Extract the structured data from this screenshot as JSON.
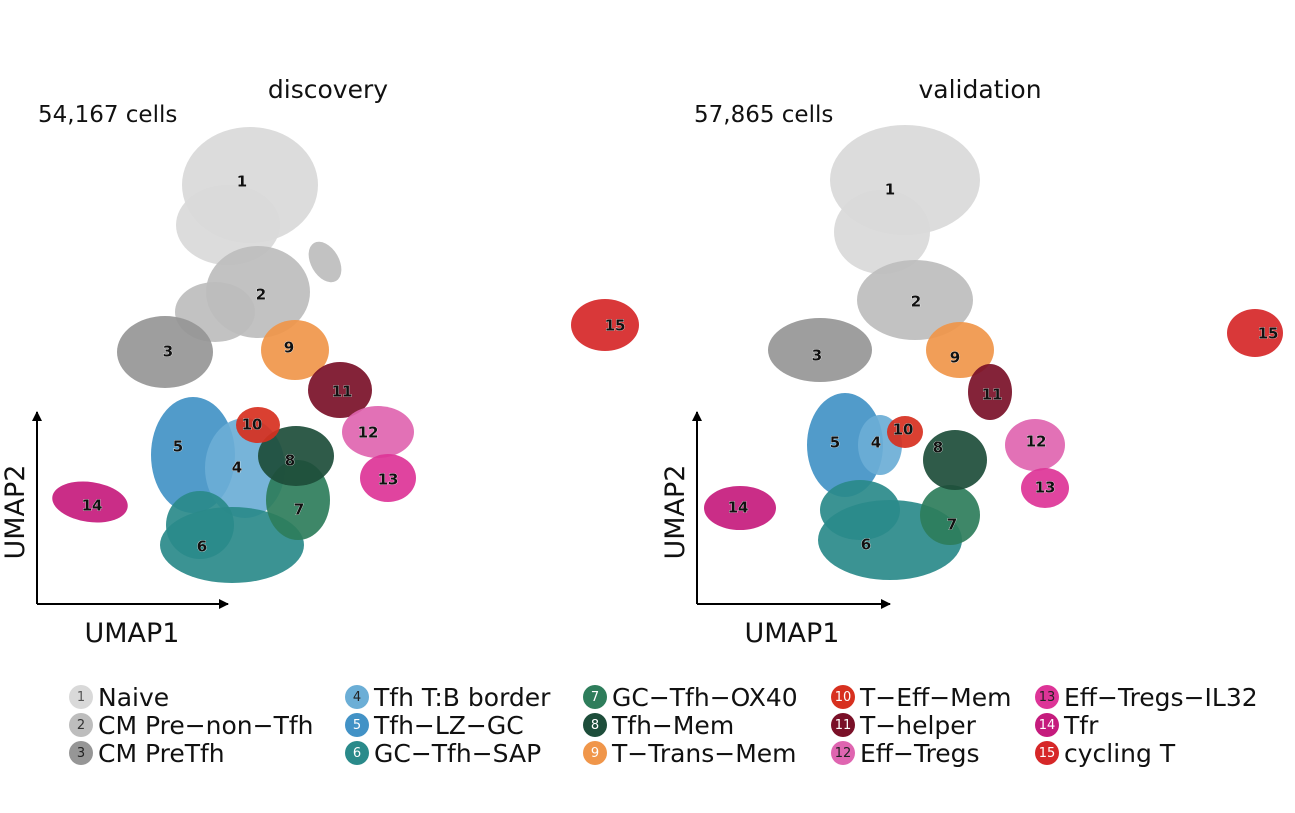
{
  "chart_data": {
    "type": "scatter",
    "xlabel": "UMAP1",
    "ylabel": "UMAP2",
    "grid": false,
    "legend_position": "bottom",
    "clusters": [
      {
        "id": 1,
        "name": "Naive",
        "color": "#d9d9d9",
        "num_color": "#555555"
      },
      {
        "id": 2,
        "name": "CM Pre-non-Tfh",
        "color": "#bdbdbd",
        "num_color": "#333333"
      },
      {
        "id": 3,
        "name": "CM PreTfh",
        "color": "#969696",
        "num_color": "#222222"
      },
      {
        "id": 4,
        "name": "Tfh T:B border",
        "color": "#6baed6",
        "num_color": "#222222"
      },
      {
        "id": 5,
        "name": "Tfh-LZ-GC",
        "color": "#4292c6",
        "num_color": "#ffffff"
      },
      {
        "id": 6,
        "name": "GC-Tfh-SAP",
        "color": "#2a8a8a",
        "num_color": "#ffffff"
      },
      {
        "id": 7,
        "name": "GC-Tfh-OX40",
        "color": "#2e7d5b",
        "num_color": "#ffffff"
      },
      {
        "id": 8,
        "name": "Tfh-Mem",
        "color": "#1d4d3a",
        "num_color": "#ffffff"
      },
      {
        "id": 9,
        "name": "T-Trans-Mem",
        "color": "#f0964a",
        "num_color": "#ffffff"
      },
      {
        "id": 10,
        "name": "T-Eff-Mem",
        "color": "#d7301f",
        "num_color": "#ffffff"
      },
      {
        "id": 11,
        "name": "T-helper",
        "color": "#7a1028",
        "num_color": "#ffffff"
      },
      {
        "id": 12,
        "name": "Eff-Tregs",
        "color": "#df65b0",
        "num_color": "#222222"
      },
      {
        "id": 13,
        "name": "Eff-Tregs-IL32",
        "color": "#dd3497",
        "num_color": "#222222"
      },
      {
        "id": 14,
        "name": "Tfr",
        "color": "#c51b7d",
        "num_color": "#ffffff"
      },
      {
        "id": 15,
        "name": "cycling T",
        "color": "#d62728",
        "num_color": "#ffffff"
      }
    ],
    "panels": [
      {
        "title": "discovery",
        "cell_count": "54,167 cells"
      },
      {
        "title": "validation",
        "cell_count": "57,865 cells"
      }
    ]
  }
}
